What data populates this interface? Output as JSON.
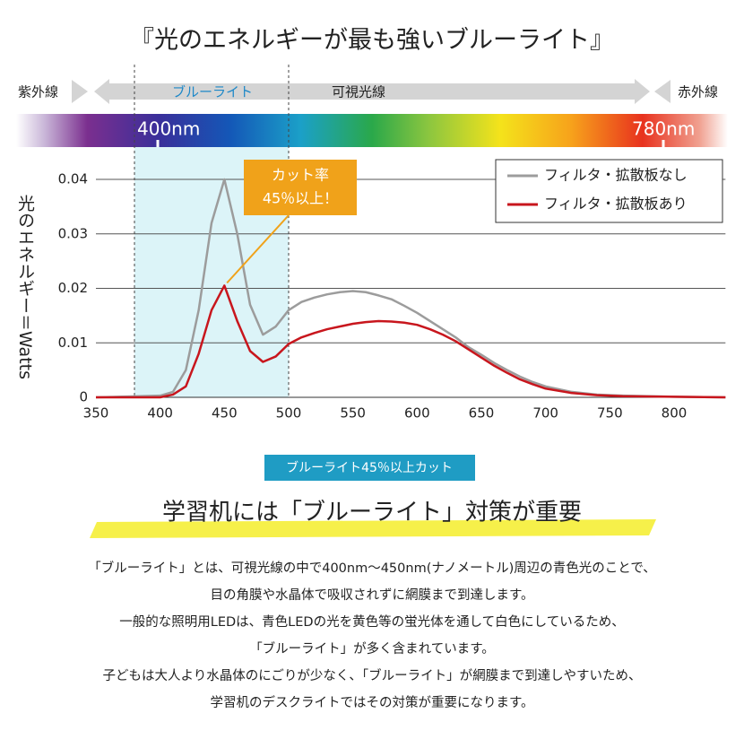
{
  "title": "『光のエネルギーが最も強いブルーライト』",
  "spectrum": {
    "left": "紫外線",
    "blue": "ブルーライト",
    "visible": "可視光線",
    "right": "赤外線",
    "mark_low": "400nm",
    "mark_high": "780nm"
  },
  "chart_data": {
    "type": "line",
    "y_label": "光のエネルギー＝Watts",
    "x": [
      350,
      400,
      410,
      420,
      430,
      440,
      450,
      460,
      470,
      480,
      490,
      500,
      510,
      520,
      530,
      540,
      550,
      560,
      570,
      580,
      590,
      600,
      610,
      620,
      630,
      640,
      650,
      660,
      670,
      680,
      690,
      700,
      720,
      740,
      760,
      800,
      840
    ],
    "series": [
      {
        "name": "フィルタ・拡散板なし",
        "color": "#9c9c9c",
        "values": [
          0,
          0.0003,
          0.001,
          0.005,
          0.016,
          0.032,
          0.04,
          0.03,
          0.017,
          0.0115,
          0.013,
          0.016,
          0.0175,
          0.0183,
          0.0189,
          0.0193,
          0.0195,
          0.0193,
          0.0187,
          0.018,
          0.0168,
          0.0155,
          0.014,
          0.0125,
          0.011,
          0.0092,
          0.0078,
          0.0063,
          0.005,
          0.0038,
          0.0028,
          0.002,
          0.001,
          0.0005,
          0.0003,
          0.0001,
          0
        ]
      },
      {
        "name": "フィルタ・拡散板あり",
        "color": "#c8161d",
        "values": [
          0,
          0,
          0.0005,
          0.002,
          0.008,
          0.016,
          0.0205,
          0.014,
          0.0085,
          0.0065,
          0.0075,
          0.0098,
          0.011,
          0.0118,
          0.0125,
          0.013,
          0.0135,
          0.0138,
          0.014,
          0.0139,
          0.0137,
          0.0133,
          0.0125,
          0.0115,
          0.0103,
          0.0088,
          0.0073,
          0.0058,
          0.0045,
          0.0033,
          0.0024,
          0.0016,
          0.0008,
          0.0004,
          0.0002,
          0.0001,
          0
        ]
      }
    ],
    "xlim": [
      350,
      840
    ],
    "ylim": [
      0,
      0.04
    ],
    "xticks": [
      350,
      400,
      450,
      500,
      550,
      600,
      650,
      700,
      750,
      800
    ],
    "yticks": [
      0,
      0.01,
      0.02,
      0.03,
      0.04
    ],
    "grid": true,
    "legend": "upper right",
    "highlight_range": [
      380,
      500
    ],
    "annotation": {
      "lines": [
        "カット率",
        "45％以上！"
      ],
      "x": 452,
      "y": 0.021
    }
  },
  "badge": "ブルーライト45％以上カット",
  "heading": "学習机には「ブルーライト」対策が重要",
  "body": [
    "「ブルーライト」とは、可視光線の中で400nm～450nm(ナノメートル)周辺の青色光のことで、",
    "目の角膜や水晶体で吸収されずに網膜まで到達します。",
    "一般的な照明用LEDは、青色LEDの光を黄色等の蛍光体を通して白色にしているため、",
    "「ブルーライト」が多く含まれています。",
    "子どもは大人より水晶体のにごりが少なく、「ブルーライト」が網膜まで到達しやすいため、",
    "学習机のデスクライトではその対策が重要になります。"
  ]
}
